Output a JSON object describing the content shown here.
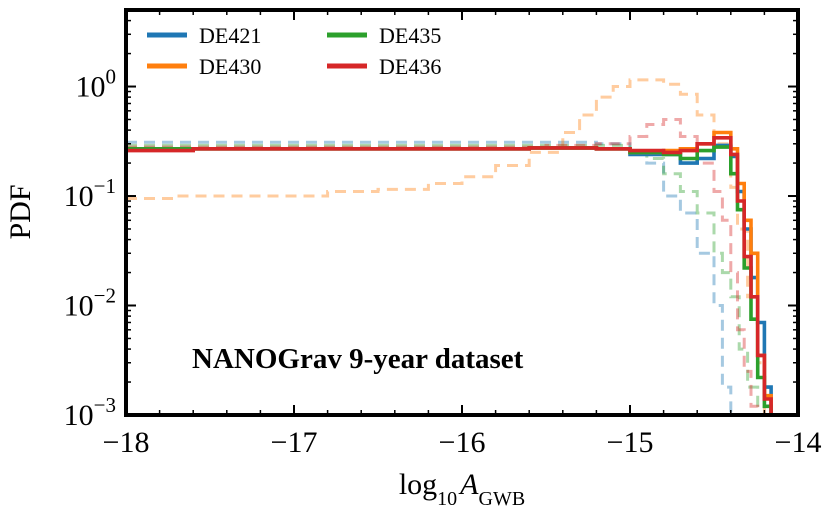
{
  "chart_data": {
    "type": "line",
    "style": "step-histogram",
    "title": "",
    "annotation": "NANOGrav 9-year dataset",
    "xlabel": {
      "prefix": "log",
      "base": "10",
      "symbol": "A",
      "subscript": "GWB"
    },
    "ylabel": "PDF",
    "xlim": [
      -18,
      -14
    ],
    "ylim": [
      0.001,
      5
    ],
    "yscale": "log",
    "grid": false,
    "legend_position": "top-left",
    "x_ticks": [
      {
        "value": -18,
        "label": "−18"
      },
      {
        "value": -17,
        "label": "−17"
      },
      {
        "value": -16,
        "label": "−16"
      },
      {
        "value": -15,
        "label": "−15"
      },
      {
        "value": -14,
        "label": "−14"
      }
    ],
    "y_ticks": [
      {
        "value": 1,
        "base": "10",
        "exp": "0"
      },
      {
        "value": 0.1,
        "base": "10",
        "exp": "−1"
      },
      {
        "value": 0.01,
        "base": "10",
        "exp": "−2"
      },
      {
        "value": 0.001,
        "base": "10",
        "exp": "−3"
      }
    ],
    "legend": [
      {
        "label": "DE421",
        "color": "#1f77b4"
      },
      {
        "label": "DE430",
        "color": "#ff7f0e"
      },
      {
        "label": "DE435",
        "color": "#2ca02c"
      },
      {
        "label": "DE436",
        "color": "#d62728"
      }
    ],
    "series": [
      {
        "name": "DE421",
        "linestyle": "solid",
        "color": "#1f77b4",
        "x": [
          -18.0,
          -17.6,
          -17.2,
          -16.8,
          -16.4,
          -16.0,
          -15.6,
          -15.2,
          -15.0,
          -14.8,
          -14.7,
          -14.6,
          -14.5,
          -14.4,
          -14.36,
          -14.32,
          -14.28,
          -14.24,
          -14.2,
          -14.16
        ],
        "y": [
          0.27,
          0.27,
          0.27,
          0.27,
          0.27,
          0.27,
          0.275,
          0.27,
          0.24,
          0.24,
          0.2,
          0.22,
          0.29,
          0.23,
          0.11,
          0.05,
          0.018,
          0.007,
          0.0018,
          0.0008
        ]
      },
      {
        "name": "DE430",
        "linestyle": "solid",
        "color": "#ff7f0e",
        "x": [
          -18.0,
          -17.6,
          -17.2,
          -16.8,
          -16.4,
          -16.0,
          -15.6,
          -15.2,
          -15.0,
          -14.8,
          -14.7,
          -14.6,
          -14.5,
          -14.4,
          -14.36,
          -14.32,
          -14.28,
          -14.24,
          -14.2,
          -14.16
        ],
        "y": [
          0.27,
          0.27,
          0.27,
          0.27,
          0.27,
          0.27,
          0.275,
          0.27,
          0.25,
          0.26,
          0.27,
          0.3,
          0.38,
          0.27,
          0.13,
          0.06,
          0.03,
          0.0035,
          0.0015,
          0.0008
        ]
      },
      {
        "name": "DE435",
        "linestyle": "solid",
        "color": "#2ca02c",
        "x": [
          -18.0,
          -17.6,
          -17.2,
          -16.8,
          -16.4,
          -16.0,
          -15.6,
          -15.2,
          -15.0,
          -14.8,
          -14.7,
          -14.6,
          -14.5,
          -14.4,
          -14.36,
          -14.32,
          -14.28,
          -14.24,
          -14.2,
          -14.16
        ],
        "y": [
          0.27,
          0.27,
          0.27,
          0.27,
          0.27,
          0.27,
          0.275,
          0.27,
          0.25,
          0.24,
          0.22,
          0.26,
          0.28,
          0.16,
          0.075,
          0.022,
          0.0075,
          0.0022,
          0.0012,
          0.0008
        ]
      },
      {
        "name": "DE436",
        "linestyle": "solid",
        "color": "#d62728",
        "x": [
          -18.0,
          -17.6,
          -17.2,
          -16.8,
          -16.4,
          -16.0,
          -15.6,
          -15.2,
          -15.0,
          -14.8,
          -14.7,
          -14.6,
          -14.5,
          -14.4,
          -14.36,
          -14.32,
          -14.28,
          -14.24,
          -14.2,
          -14.16
        ],
        "y": [
          0.26,
          0.27,
          0.27,
          0.27,
          0.27,
          0.27,
          0.275,
          0.27,
          0.26,
          0.25,
          0.26,
          0.3,
          0.34,
          0.24,
          0.09,
          0.028,
          0.012,
          0.0035,
          0.0014,
          0.0008
        ]
      },
      {
        "name": "DE421 (dashed)",
        "linestyle": "dashed",
        "color": "#1f77b4",
        "x": [
          -18.0,
          -17.5,
          -17.0,
          -16.5,
          -16.0,
          -15.5,
          -15.2,
          -15.0,
          -14.9,
          -14.8,
          -14.7,
          -14.6,
          -14.5,
          -14.45,
          -14.4
        ],
        "y": [
          0.31,
          0.31,
          0.31,
          0.31,
          0.31,
          0.31,
          0.3,
          0.24,
          0.2,
          0.1,
          0.07,
          0.03,
          0.01,
          0.0018,
          0.0008
        ]
      },
      {
        "name": "DE430 (dashed)",
        "linestyle": "dashed",
        "color": "#ff7f0e",
        "x": [
          -18.0,
          -17.7,
          -17.4,
          -17.1,
          -16.8,
          -16.5,
          -16.2,
          -16.0,
          -15.8,
          -15.6,
          -15.4,
          -15.3,
          -15.2,
          -15.1,
          -15.0,
          -14.9,
          -14.8,
          -14.7,
          -14.6,
          -14.5,
          -14.4,
          -14.36,
          -14.3,
          -14.24,
          -14.2
        ],
        "y": [
          0.095,
          0.1,
          0.1,
          0.1,
          0.11,
          0.115,
          0.13,
          0.15,
          0.19,
          0.25,
          0.38,
          0.55,
          0.8,
          1.0,
          1.15,
          1.15,
          1.05,
          0.85,
          0.55,
          0.3,
          0.12,
          0.05,
          0.012,
          0.003,
          0.0008
        ]
      },
      {
        "name": "DE435 (dashed)",
        "linestyle": "dashed",
        "color": "#2ca02c",
        "x": [
          -18.0,
          -17.5,
          -17.0,
          -16.5,
          -16.0,
          -15.5,
          -15.2,
          -15.0,
          -14.9,
          -14.8,
          -14.7,
          -14.6,
          -14.5,
          -14.45,
          -14.4,
          -14.35,
          -14.3,
          -14.24
        ],
        "y": [
          0.29,
          0.29,
          0.29,
          0.29,
          0.29,
          0.29,
          0.29,
          0.26,
          0.22,
          0.16,
          0.11,
          0.07,
          0.03,
          0.02,
          0.012,
          0.004,
          0.0018,
          0.0008
        ]
      },
      {
        "name": "DE436 (dashed)",
        "linestyle": "dashed",
        "color": "#d62728",
        "x": [
          -18.0,
          -17.5,
          -17.0,
          -16.5,
          -16.0,
          -15.5,
          -15.2,
          -15.0,
          -14.9,
          -14.8,
          -14.7,
          -14.6,
          -14.5,
          -14.45,
          -14.4,
          -14.36,
          -14.32,
          -14.28,
          -14.24
        ],
        "y": [
          0.28,
          0.28,
          0.28,
          0.28,
          0.28,
          0.29,
          0.3,
          0.35,
          0.45,
          0.5,
          0.35,
          0.2,
          0.11,
          0.06,
          0.02,
          0.006,
          0.0025,
          0.0012,
          0.0008
        ]
      }
    ]
  }
}
